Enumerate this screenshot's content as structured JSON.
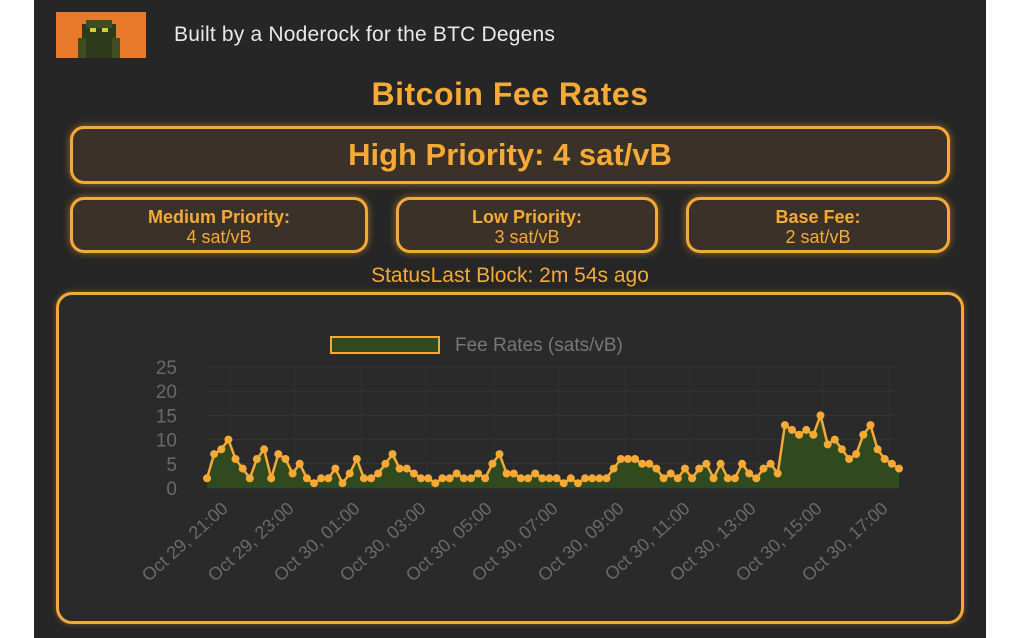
{
  "header": {
    "tagline": "Built by a Noderock for the BTC Degens"
  },
  "title": "Bitcoin Fee Rates",
  "high": {
    "text": "High Priority: 4 sat/vB"
  },
  "medium": {
    "label": "Medium Priority:",
    "value": "4 sat/vB"
  },
  "low": {
    "label": "Low Priority:",
    "value": "3 sat/vB"
  },
  "base": {
    "label": "Base Fee:",
    "value": "2 sat/vB"
  },
  "status": "StatusLast Block: 2m 54s ago",
  "colors": {
    "accent": "#f7a935",
    "fill": "#2f4a1e",
    "background": "#262626"
  },
  "chart_data": {
    "type": "area",
    "legend": "Fee Rates (sats/vB)",
    "legend_position": "top",
    "ylim": [
      0,
      25
    ],
    "yticks": [
      0,
      5,
      10,
      15,
      20,
      25
    ],
    "xticks": [
      "Oct 29, 21:00",
      "Oct 29, 23:00",
      "Oct 30, 01:00",
      "Oct 30, 03:00",
      "Oct 30, 05:00",
      "Oct 30, 07:00",
      "Oct 30, 09:00",
      "Oct 30, 11:00",
      "Oct 30, 13:00",
      "Oct 30, 15:00",
      "Oct 30, 17:00"
    ],
    "grid": true,
    "series": [
      {
        "name": "Fee Rates (sats/vB)",
        "values": [
          2,
          7,
          8,
          10,
          6,
          4,
          2,
          6,
          8,
          2,
          7,
          6,
          3,
          5,
          2,
          1,
          2,
          2,
          4,
          1,
          3,
          6,
          2,
          2,
          3,
          5,
          7,
          4,
          4,
          3,
          2,
          2,
          1,
          2,
          2,
          3,
          2,
          2,
          3,
          2,
          5,
          7,
          3,
          3,
          2,
          2,
          3,
          2,
          2,
          2,
          1,
          2,
          1,
          2,
          2,
          2,
          2,
          4,
          6,
          6,
          6,
          5,
          5,
          4,
          2,
          3,
          2,
          4,
          2,
          4,
          5,
          2,
          5,
          2,
          2,
          5,
          3,
          2,
          4,
          5,
          3,
          13,
          12,
          11,
          12,
          11,
          15,
          9,
          10,
          8,
          6,
          7,
          11,
          13,
          8,
          6,
          5,
          4
        ]
      }
    ]
  }
}
